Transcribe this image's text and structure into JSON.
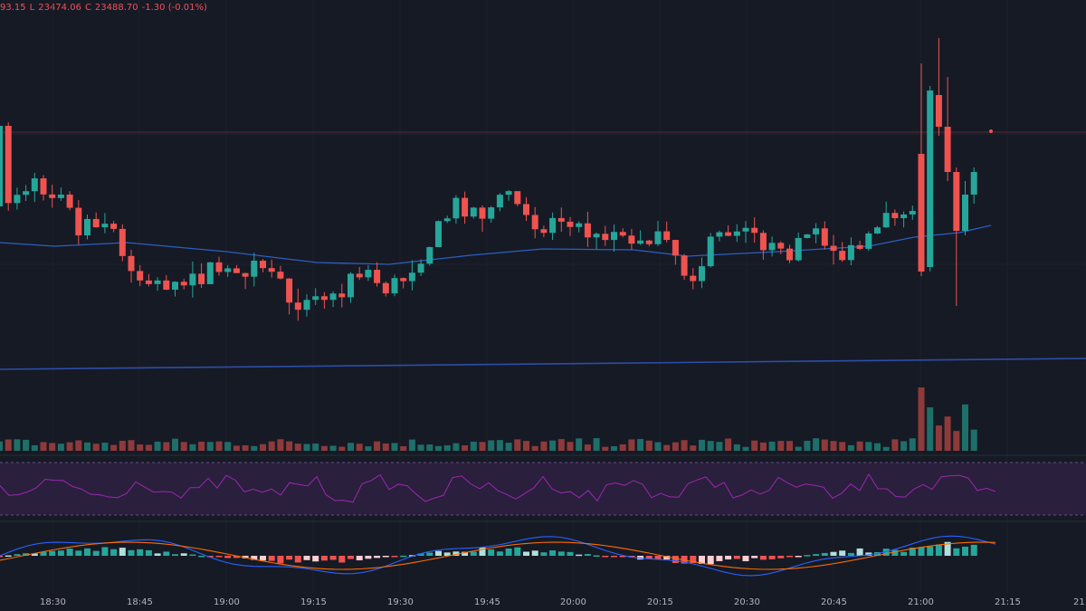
{
  "legend": {
    "high_tail": "93.15",
    "low_key": "L",
    "low_value": "23474.06",
    "close_key": "C",
    "close_value": "23488.70",
    "change": "-1.30 (-0.01%)"
  },
  "colors": {
    "background": "#161a25",
    "up": "#26a69a",
    "down": "#ef5350",
    "ma_fast": "#2c5fbf",
    "ma_slow": "#2d4ea8",
    "rsi_line": "#9c27b0",
    "rsi_band": "#2a1f3d",
    "macd_line": "#2962ff",
    "signal_line": "#ff6d00"
  },
  "chart_data": {
    "type": "candlestick",
    "xlabel": "",
    "ylabel": "",
    "x_tick_labels": [
      "18:30",
      "18:45",
      "19:00",
      "19:15",
      "19:30",
      "19:45",
      "20:00",
      "20:15",
      "20:30",
      "20:45",
      "21:00",
      "21:15",
      "21"
    ],
    "candle_count": 112,
    "price_axis_hidden": true,
    "panes": [
      "price",
      "volume",
      "rsi",
      "macd"
    ],
    "last_close": 23488.7,
    "last_low": 23474.06,
    "last_change": -1.3,
    "last_change_pct": -0.01
  }
}
